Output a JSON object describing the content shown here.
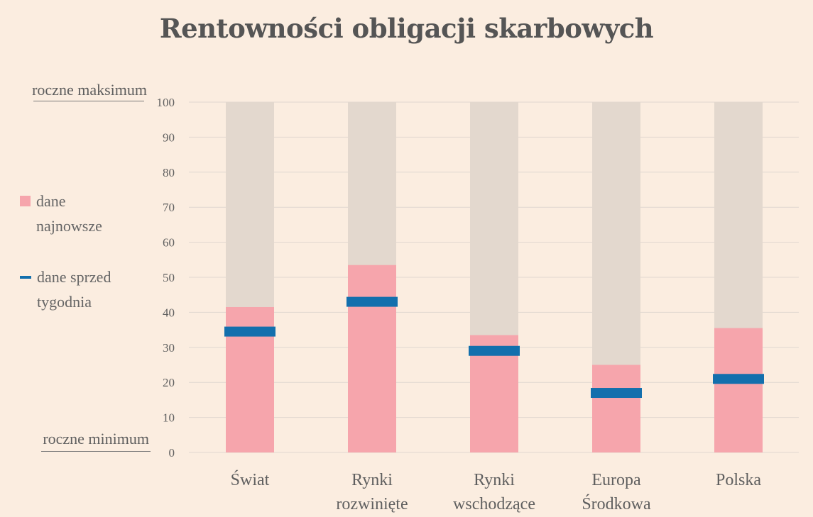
{
  "chart_data": {
    "type": "bar",
    "title": "Rentowności obligacji skarbowych",
    "categories": [
      "Świat",
      "Rynki\nrozwinięte",
      "Rynki\nwschodzące",
      "Europa\nŚrodkowa",
      "Polska"
    ],
    "series": [
      {
        "name": "dane najnowsze",
        "values": [
          41.5,
          53.5,
          33.5,
          25,
          35.5
        ]
      },
      {
        "name": "dane sprzed tygodnia",
        "values": [
          34.5,
          43,
          29,
          17,
          21
        ]
      }
    ],
    "background_max": 100,
    "ylim": [
      0,
      100
    ],
    "yticks": [
      0,
      10,
      20,
      30,
      40,
      50,
      60,
      70,
      80,
      90,
      100
    ],
    "grid": true,
    "legend_position": "left"
  },
  "axis_labels": {
    "max": "roczne maksimum",
    "min": "roczne minimum"
  },
  "legend": {
    "latest": "dane\nnajnowsze",
    "week_ago": "dane sprzed\ntygodnia"
  },
  "colors": {
    "background": "#fbede0",
    "range_bar": "#e3d8ce",
    "latest_bar": "#f6a5ac",
    "week_marker": "#136fad",
    "grid": "#e0d7d0",
    "text": "#5f5f5f"
  }
}
